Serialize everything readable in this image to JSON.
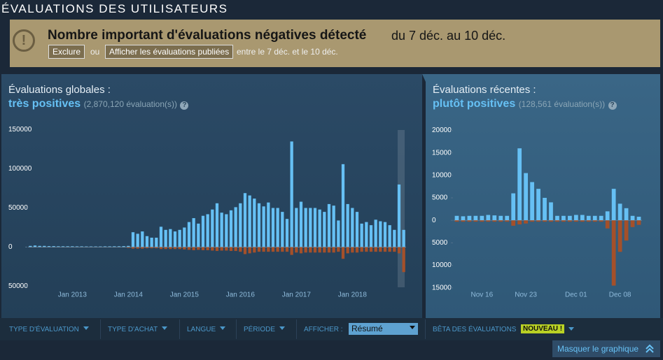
{
  "header": {
    "title": "ÉVALUATIONS DES UTILISATEURS"
  },
  "alert": {
    "headline": "Nombre important d'évaluations négatives détecté",
    "dates": "du 7 déc. au 10 déc.",
    "exclude": "Exclure",
    "or": "ou",
    "show": "Afficher les évaluations publiées",
    "range": "entre le 7 déc. et le 10 déc."
  },
  "help_icon": "?",
  "chart_data": [
    {
      "type": "bar",
      "title": "Évaluations globales :",
      "rating": "très positives",
      "count": "(2,870,120 évaluation(s))",
      "categories": [
        null,
        null,
        null,
        null,
        null,
        null,
        null,
        null,
        null,
        "Jan 2013",
        null,
        null,
        null,
        null,
        null,
        null,
        null,
        null,
        null,
        null,
        null,
        "Jan 2014",
        null,
        null,
        null,
        null,
        null,
        null,
        null,
        null,
        null,
        null,
        null,
        "Jan 2015",
        null,
        null,
        null,
        null,
        null,
        null,
        null,
        null,
        null,
        null,
        null,
        "Jan 2016",
        null,
        null,
        null,
        null,
        null,
        null,
        null,
        null,
        null,
        null,
        null,
        "Jan 2017",
        null,
        null,
        null,
        null,
        null,
        null,
        null,
        null,
        null,
        null,
        null,
        "Jan 2018",
        null,
        null,
        null,
        null,
        null,
        null,
        null,
        null,
        null,
        null,
        null
      ],
      "series": [
        {
          "color": "#66c0f4",
          "values": [
            1500,
            2000,
            1500,
            1500,
            1200,
            1200,
            1000,
            1000,
            1000,
            1000,
            900,
            900,
            800,
            800,
            800,
            800,
            900,
            900,
            1000,
            1000,
            1200,
            1500,
            19000,
            17000,
            20000,
            14000,
            12000,
            12000,
            26000,
            22000,
            23000,
            20000,
            22000,
            25000,
            32000,
            37000,
            30000,
            40000,
            42000,
            48000,
            56000,
            44000,
            42000,
            47000,
            51000,
            56000,
            69000,
            66000,
            62000,
            56000,
            52000,
            57000,
            50000,
            50000,
            45000,
            36000,
            135000,
            50000,
            58000,
            50000,
            50000,
            50000,
            48000,
            45000,
            55000,
            53000,
            34000,
            106000,
            55000,
            50000,
            45000,
            30000,
            32000,
            28000,
            35000,
            33000,
            32000,
            28000,
            22000,
            80000,
            22000
          ]
        },
        {
          "color": "#a4502a",
          "values": [
            -300,
            -300,
            -300,
            -300,
            -300,
            -300,
            -300,
            -300,
            -300,
            -300,
            -300,
            -300,
            -300,
            -300,
            -300,
            -300,
            -300,
            -300,
            -300,
            -300,
            -300,
            -1000,
            -2000,
            -2000,
            -2000,
            -1500,
            -1500,
            -1500,
            -2500,
            -2500,
            -2500,
            -2500,
            -2500,
            -3000,
            -3500,
            -4000,
            -3500,
            -4000,
            -4000,
            -4500,
            -5000,
            -4500,
            -4500,
            -5000,
            -5000,
            -6000,
            -9000,
            -8000,
            -7000,
            -6000,
            -6000,
            -6000,
            -6000,
            -6000,
            -6000,
            -6000,
            -10000,
            -7000,
            -8000,
            -7000,
            -7000,
            -7000,
            -7000,
            -7000,
            -7000,
            -7000,
            -6000,
            -15000,
            -8000,
            -7000,
            -7000,
            -6000,
            -6000,
            -6000,
            -6000,
            -6000,
            -6000,
            -6000,
            -6000,
            -8000,
            -32000
          ]
        }
      ],
      "ylim": [
        -55000,
        155000
      ],
      "yticks": [
        {
          "value": -50000,
          "label": "50000"
        },
        0,
        50000,
        100000,
        150000
      ],
      "grid": false
    },
    {
      "type": "bar",
      "title": "Évaluations récentes :",
      "rating": "plutôt positives",
      "count": "(128,561 évaluation(s))",
      "categories": [
        null,
        null,
        null,
        null,
        "Nov 16",
        null,
        null,
        null,
        null,
        null,
        null,
        "Nov 23",
        null,
        null,
        null,
        null,
        null,
        null,
        null,
        "Dec 01",
        null,
        null,
        null,
        null,
        null,
        null,
        "Dec 08",
        null,
        null,
        null
      ],
      "series": [
        {
          "color": "#66c0f4",
          "values": [
            1000,
            900,
            1000,
            1000,
            1000,
            1200,
            1100,
            1000,
            1000,
            6000,
            16000,
            10500,
            8500,
            7000,
            5000,
            4000,
            1000,
            1000,
            1000,
            1200,
            1200,
            1000,
            1000,
            1000,
            2000,
            7000,
            3700,
            2700,
            1000,
            800
          ]
        },
        {
          "color": "#a4502a",
          "values": [
            -300,
            -300,
            -300,
            -300,
            -300,
            -300,
            -300,
            -300,
            -300,
            -1200,
            -900,
            -700,
            -300,
            -300,
            -300,
            -300,
            -300,
            -300,
            -300,
            -300,
            -300,
            -300,
            -300,
            -300,
            -1800,
            -14500,
            -7000,
            -4500,
            -1500,
            -1000
          ]
        }
      ],
      "ylim": [
        -15500,
        21000
      ],
      "yticks": [
        {
          "value": -15000,
          "label": "15000"
        },
        {
          "value": -10000,
          "label": "10000"
        },
        {
          "value": -5000,
          "label": "5000"
        },
        0,
        5000,
        10000,
        15000,
        20000
      ],
      "grid": false
    }
  ],
  "filters": {
    "items": [
      "TYPE D'ÉVALUATION",
      "TYPE D'ACHAT",
      "LANGUE",
      "PÉRIODE"
    ],
    "display_label": "AFFICHER :",
    "display_value": "Résumé",
    "beta": "BÊTA DES ÉVALUATIONS",
    "new_badge": "NOUVEAU !",
    "hide_graph": "Masquer le graphique"
  }
}
